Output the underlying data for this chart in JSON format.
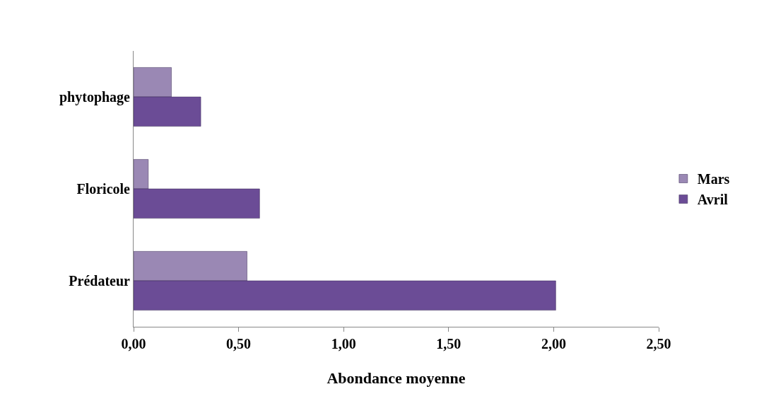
{
  "chart_data": {
    "type": "bar",
    "orientation": "horizontal",
    "xlabel": "Abondance moyenne",
    "categories": [
      "phytophage",
      "Floricole",
      "Prédateur"
    ],
    "series": [
      {
        "name": "Mars",
        "color": "#9a88b4",
        "values": [
          0.18,
          0.07,
          0.54
        ]
      },
      {
        "name": "Avril",
        "color": "#6b4c96",
        "values": [
          0.32,
          0.6,
          2.01
        ]
      }
    ],
    "xlim": [
      0,
      2.5
    ],
    "xticks": [
      {
        "value": 0,
        "label": "0,00"
      },
      {
        "value": 0.5,
        "label": "0,50"
      },
      {
        "value": 1,
        "label": "1,00"
      },
      {
        "value": 1.5,
        "label": "1,50"
      },
      {
        "value": 2,
        "label": "2,00"
      },
      {
        "value": 2.5,
        "label": "2,50"
      }
    ],
    "grid": false,
    "legend": "right"
  }
}
